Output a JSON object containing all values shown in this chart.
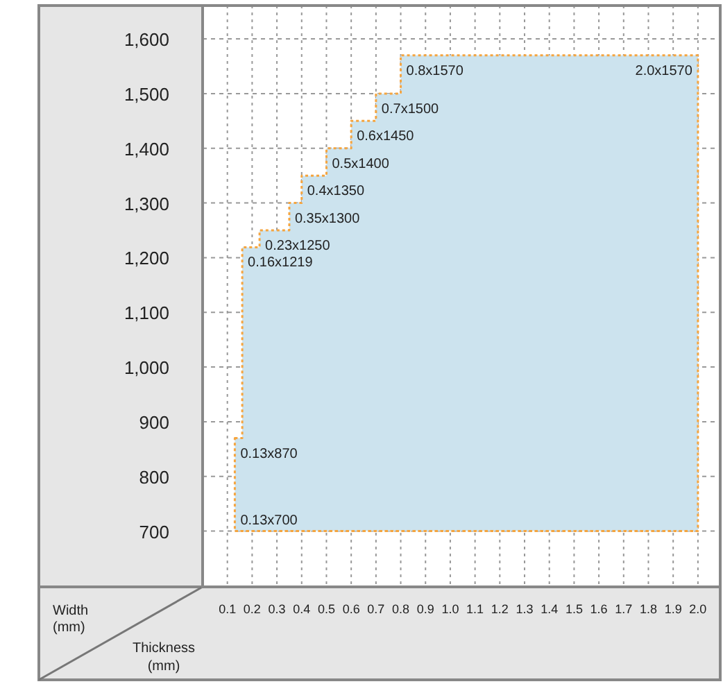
{
  "chart_data": {
    "type": "step",
    "xlabel": "Thickness\n(mm)",
    "ylabel": "Width\n(mm)",
    "x": [
      0.13,
      0.16,
      0.23,
      0.35,
      0.4,
      0.5,
      0.6,
      0.7,
      0.8,
      2.0
    ],
    "series": [
      {
        "type": "area",
        "color": "#cce3ee",
        "values": [
          870,
          1219,
          1250,
          1300,
          1350,
          1400,
          1450,
          1500,
          1570,
          1570
        ]
      },
      {
        "type": "step",
        "color": "#f5a540",
        "values": [
          700,
          700,
          700,
          700,
          700,
          700,
          700,
          700,
          700,
          700
        ]
      }
    ],
    "line_style": "dotted",
    "grid": true,
    "xlim": [
      0,
      2.09
    ],
    "xticks": [
      0.1,
      0.2,
      0.3,
      0.4,
      0.5,
      0.6,
      0.7,
      0.8,
      0.9,
      {
        "value": 1.0,
        "label": "1.0"
      },
      1.1,
      1.2,
      1.3,
      1.4,
      1.5,
      1.6,
      1.7,
      1.8,
      1.9,
      {
        "value": 2.0,
        "label": "2.0"
      }
    ],
    "ylim": [
      598,
      1661
    ],
    "yticks": [
      {
        "value": 700,
        "label": "700"
      },
      {
        "value": 800,
        "label": "800"
      },
      {
        "value": 900,
        "label": "900"
      },
      {
        "value": 1000,
        "label": "1,000"
      },
      {
        "value": 1100,
        "label": "1,100"
      },
      {
        "value": 1200,
        "label": "1,200"
      },
      {
        "value": 1300,
        "label": "1,300"
      },
      {
        "value": 1400,
        "label": "1,400"
      },
      {
        "value": 1500,
        "label": "1,500"
      },
      {
        "value": 1600,
        "label": "1,600"
      }
    ],
    "annotations": [
      {
        "text": "0.13x700",
        "x": 0.13,
        "y": 700
      },
      {
        "text": "0.13x870",
        "x": 0.13,
        "y": 870
      },
      {
        "text": "0.16x1219",
        "x": 0.16,
        "y": 1219
      },
      {
        "text": "0.23x1250",
        "x": 0.23,
        "y": 1250
      },
      {
        "text": "0.35x1300",
        "x": 0.35,
        "y": 1300
      },
      {
        "text": "0.4x1350",
        "x": 0.4,
        "y": 1350
      },
      {
        "text": "0.5x1400",
        "x": 0.5,
        "y": 1400
      },
      {
        "text": "0.6x1450",
        "x": 0.6,
        "y": 1450
      },
      {
        "text": "0.7x1500",
        "x": 0.7,
        "y": 1500
      },
      {
        "text": "0.8x1570",
        "x": 0.8,
        "y": 1570
      },
      {
        "text": "2.0x1570",
        "x": 2.0,
        "y": 1570
      }
    ]
  }
}
